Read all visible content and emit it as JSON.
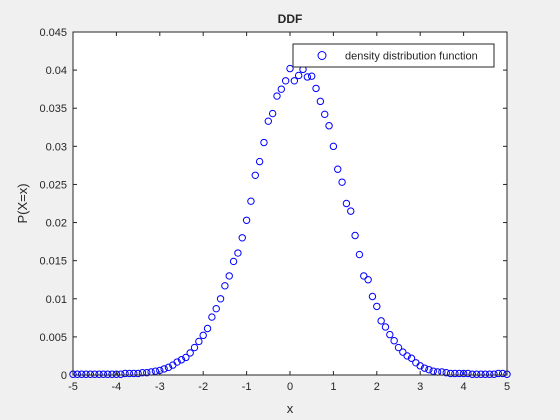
{
  "chart_data": {
    "type": "scatter",
    "title": "DDF",
    "xlabel": "x",
    "ylabel": "P(X=x)",
    "xlim": [
      -5,
      5
    ],
    "ylim": [
      0,
      0.045
    ],
    "xticks": [
      -5,
      -4,
      -3,
      -2,
      -1,
      0,
      1,
      2,
      3,
      4,
      5
    ],
    "xtick_labels": [
      "-5",
      "-4",
      "-3",
      "-2",
      "-1",
      "0",
      "1",
      "2",
      "3",
      "4",
      "5"
    ],
    "yticks": [
      0,
      0.005,
      0.01,
      0.015,
      0.02,
      0.025,
      0.03,
      0.035,
      0.04,
      0.045
    ],
    "ytick_labels": [
      "0",
      "0.005",
      "0.01",
      "0.015",
      "0.02",
      "0.025",
      "0.03",
      "0.035",
      "0.04",
      "0.045"
    ],
    "grid": false,
    "legend_position": "top-right",
    "series": [
      {
        "name": "density distribution function",
        "color": "#0000ff",
        "marker": "circle-open",
        "x": [
          -5.0,
          -4.9,
          -4.8,
          -4.7,
          -4.6,
          -4.5,
          -4.4,
          -4.3,
          -4.2,
          -4.1,
          -4.0,
          -3.9,
          -3.8,
          -3.7,
          -3.6,
          -3.5,
          -3.4,
          -3.3,
          -3.2,
          -3.1,
          -3.0,
          -2.9,
          -2.8,
          -2.7,
          -2.6,
          -2.5,
          -2.4,
          -2.3,
          -2.2,
          -2.1,
          -2.0,
          -1.9,
          -1.8,
          -1.7,
          -1.6,
          -1.5,
          -1.4,
          -1.3,
          -1.2,
          -1.1,
          -1.0,
          -0.9,
          -0.8,
          -0.7,
          -0.6,
          -0.5,
          -0.4,
          -0.3,
          -0.2,
          -0.1,
          0.0,
          0.1,
          0.2,
          0.3,
          0.4,
          0.5,
          0.6,
          0.7,
          0.8,
          0.9,
          1.0,
          1.1,
          1.2,
          1.3,
          1.4,
          1.5,
          1.6,
          1.7,
          1.8,
          1.9,
          2.0,
          2.1,
          2.2,
          2.3,
          2.4,
          2.5,
          2.6,
          2.7,
          2.8,
          2.9,
          3.0,
          3.1,
          3.2,
          3.3,
          3.4,
          3.5,
          3.6,
          3.7,
          3.8,
          3.9,
          4.0,
          4.1,
          4.2,
          4.3,
          4.4,
          4.5,
          4.6,
          4.7,
          4.8,
          4.9,
          5.0
        ],
        "y": [
          0.0001,
          0.0001,
          0.0001,
          0.0001,
          0.0001,
          0.0001,
          0.0001,
          0.0001,
          0.0001,
          0.0001,
          0.0001,
          0.0001,
          0.0002,
          0.0002,
          0.0002,
          0.0002,
          0.0003,
          0.0003,
          0.0004,
          0.0005,
          0.0006,
          0.0008,
          0.001,
          0.0013,
          0.0017,
          0.002,
          0.0023,
          0.0029,
          0.0036,
          0.0044,
          0.0052,
          0.0061,
          0.0076,
          0.0087,
          0.01,
          0.0117,
          0.013,
          0.0149,
          0.016,
          0.018,
          0.0203,
          0.0228,
          0.0262,
          0.028,
          0.0305,
          0.0333,
          0.0343,
          0.0366,
          0.0375,
          0.0386,
          0.0402,
          0.0386,
          0.0393,
          0.0401,
          0.0391,
          0.0392,
          0.0376,
          0.0359,
          0.0342,
          0.0327,
          0.03,
          0.027,
          0.0253,
          0.0225,
          0.0215,
          0.0183,
          0.0158,
          0.013,
          0.0125,
          0.0103,
          0.009,
          0.0071,
          0.0063,
          0.0053,
          0.0045,
          0.0036,
          0.003,
          0.0025,
          0.0022,
          0.0016,
          0.0012,
          0.0009,
          0.0007,
          0.0005,
          0.0004,
          0.0004,
          0.0003,
          0.0002,
          0.0002,
          0.0002,
          0.0002,
          0.0002,
          0.0001,
          0.0001,
          0.0001,
          0.0001,
          0.0001,
          0.0001,
          0.0002,
          0.0002,
          0.0001
        ]
      }
    ]
  }
}
